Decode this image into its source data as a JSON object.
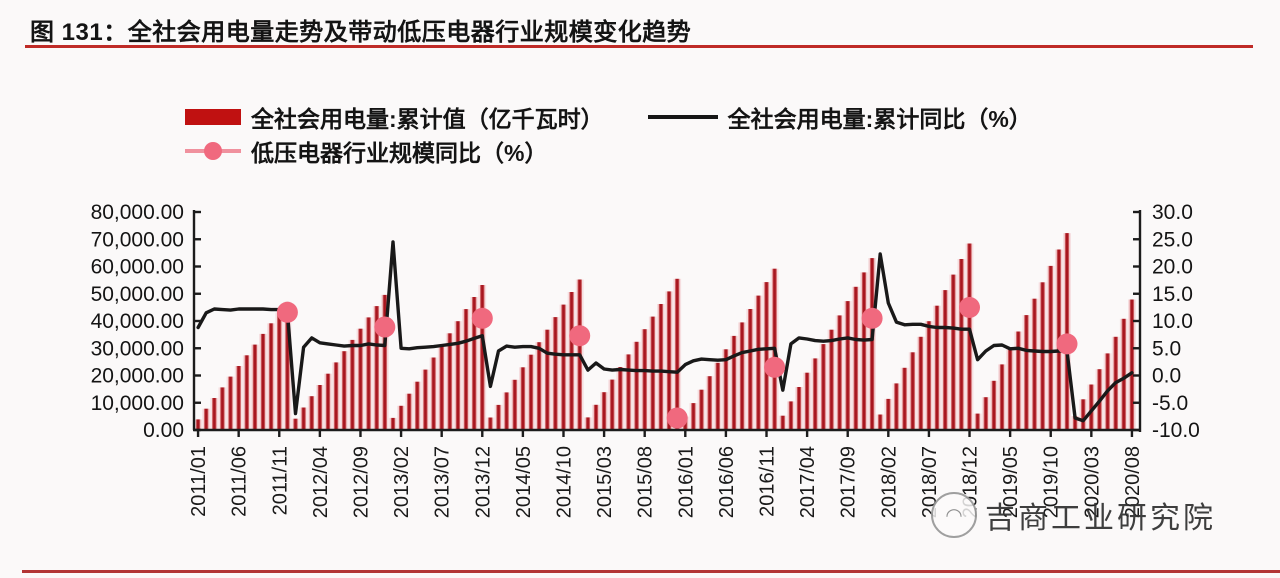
{
  "figure": {
    "title": "图 131：全社会用电量走势及带动低压电器行业规模变化趋势"
  },
  "legend": {
    "items": [
      {
        "label": "全社会用电量:累计值（亿千瓦时）",
        "swatch": "bar",
        "color": "#c01111"
      },
      {
        "label": "全社会用电量:累计同比（%）",
        "swatch": "line",
        "color": "#161616"
      },
      {
        "label": "低压电器行业规模同比（%）",
        "swatch": "line-marker",
        "color": "#f0697e"
      }
    ]
  },
  "watermark": {
    "text": "吉商工业研究院",
    "logo": "circle-logo"
  },
  "chart_data": {
    "type": "bar+line combo",
    "x_start_month": "2011/01",
    "x_end_month": "2020/08",
    "x_tick_every_months": 5,
    "x_tick_labels": [
      "2011/01",
      "2011/06",
      "2011/11",
      "2012/04",
      "2012/09",
      "2013/02",
      "2013/07",
      "2013/12",
      "2014/05",
      "2014/10",
      "2015/03",
      "2015/08",
      "2016/01",
      "2016/06",
      "2016/11",
      "2017/04",
      "2017/09",
      "2018/02",
      "2018/07",
      "2018/12",
      "2019/05",
      "2019/10",
      "2020/03",
      "2020/08"
    ],
    "left_axis": {
      "min": 0,
      "max": 80000,
      "tick_labels": [
        "80,000.00",
        "70,000.00",
        "60,000.00",
        "50,000.00",
        "40,000.00",
        "30,000.00",
        "20,000.00",
        "10,000.00",
        "0.00"
      ]
    },
    "right_axis": {
      "min": -10,
      "max": 30,
      "tick_labels": [
        "30.0",
        "25.0",
        "20.0",
        "15.0",
        "10.0",
        "5.0",
        "0.0",
        "-5.0",
        "-10.0"
      ]
    },
    "series": [
      {
        "name": "全社会用电量:累计值（亿千瓦时）",
        "type": "bar",
        "axis": "left",
        "color": "#a8161f",
        "values": [
          3900,
          7800,
          11750,
          15650,
          19600,
          23500,
          27400,
          31350,
          35250,
          39150,
          43100,
          47000,
          4130,
          8265,
          12400,
          16530,
          20660,
          24800,
          28930,
          33060,
          37190,
          41330,
          45460,
          49590,
          4435,
          8870,
          13310,
          17740,
          22180,
          26610,
          31050,
          35480,
          39920,
          44350,
          48790,
          53220,
          4600,
          9210,
          13810,
          18410,
          23010,
          27620,
          32220,
          36820,
          41430,
          46030,
          50630,
          55230,
          4625,
          9250,
          13875,
          18500,
          23125,
          27750,
          32375,
          37000,
          41625,
          46250,
          50875,
          55500,
          4930,
          9870,
          14800,
          19730,
          24670,
          29600,
          34530,
          39470,
          44400,
          49330,
          54270,
          59200,
          5260,
          10510,
          15770,
          21030,
          26280,
          31540,
          36800,
          42050,
          47310,
          52560,
          57820,
          63080,
          5700,
          11410,
          17110,
          22820,
          28520,
          34220,
          39930,
          45630,
          51340,
          57040,
          62750,
          68450,
          6020,
          12040,
          18060,
          24090,
          30110,
          36130,
          42150,
          48170,
          54190,
          60210,
          66230,
          72260,
          5100,
          11270,
          16700,
          22300,
          28100,
          34200,
          40800,
          47880
        ]
      },
      {
        "name": "全社会用电量:累计同比（%）",
        "type": "line",
        "axis": "right",
        "color": "#191919",
        "values": [
          8.8,
          11.5,
          12.2,
          12.1,
          12.0,
          12.2,
          12.2,
          12.2,
          12.2,
          12.1,
          12.1,
          11.7,
          -7.0,
          5.2,
          6.9,
          6.0,
          5.8,
          5.6,
          5.4,
          5.5,
          5.5,
          5.8,
          5.6,
          5.5,
          24.5,
          5.0,
          4.9,
          5.1,
          5.2,
          5.3,
          5.5,
          5.7,
          5.9,
          6.3,
          6.8,
          7.3,
          -2.0,
          4.5,
          5.4,
          5.2,
          5.3,
          5.3,
          5.0,
          4.1,
          3.9,
          3.8,
          3.8,
          3.8,
          1.0,
          2.3,
          1.2,
          1.0,
          1.1,
          1.0,
          0.9,
          0.9,
          0.8,
          0.8,
          0.7,
          0.6,
          2.0,
          2.7,
          3.0,
          2.9,
          2.8,
          2.9,
          3.6,
          4.2,
          4.5,
          4.8,
          4.9,
          5.0,
          -2.7,
          5.8,
          6.9,
          6.7,
          6.4,
          6.3,
          6.4,
          6.7,
          6.9,
          6.6,
          6.5,
          6.6,
          22.3,
          13.3,
          9.8,
          9.3,
          9.4,
          9.4,
          9.0,
          8.8,
          8.8,
          8.7,
          8.5,
          8.5,
          2.9,
          4.5,
          5.5,
          5.6,
          4.9,
          5.0,
          4.6,
          4.5,
          4.4,
          4.4,
          4.5,
          4.5,
          -7.8,
          -8.3,
          -6.5,
          -4.7,
          -2.8,
          -1.3,
          -0.5,
          0.5
        ]
      },
      {
        "name": "低压电器行业规模同比（%）",
        "type": "scatter",
        "axis": "right",
        "color": "#f0697e",
        "points": [
          {
            "month": "2011/12",
            "value": 11.6
          },
          {
            "month": "2012/12",
            "value": 8.9
          },
          {
            "month": "2013/12",
            "value": 10.5
          },
          {
            "month": "2014/12",
            "value": 7.3
          },
          {
            "month": "2015/12",
            "value": -7.8
          },
          {
            "month": "2016/12",
            "value": 1.5
          },
          {
            "month": "2017/12",
            "value": 10.5
          },
          {
            "month": "2018/12",
            "value": 12.5
          },
          {
            "month": "2019/12",
            "value": 5.8
          }
        ]
      }
    ]
  }
}
